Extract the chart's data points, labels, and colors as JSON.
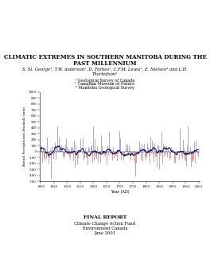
{
  "title_line1": "CLIMATIC EXTREMES IN SOUTHERN MANITOBA DURING THE",
  "title_line2": "PAST MILLENNIUM",
  "authors": "S. St. George¹, T.W. Anderson², D. Forbes¹, C.F.M. Lewis¹, E. Nielsen³ and L.H.",
  "authors2": "Thorleifson³",
  "affil1": "¹ Geological Survey of Canada",
  "affil2": "² Canadian Museum of Nature",
  "affil3": "³ Manitoba Geological Survey",
  "footer1": "FINAL REPORT",
  "footer2": "Climate Change Action Fund",
  "footer3": "Environment Canada",
  "footer4": "June 2001",
  "xlabel": "Year (AD)",
  "ylabel": "Annual Precipitation Anomaly (mm)",
  "xmin": 1400,
  "xmax": 2000,
  "ymin": -500,
  "ymax": 1000,
  "yticks": [
    -500,
    -400,
    -300,
    -200,
    -100,
    0,
    100,
    200,
    300,
    400,
    500,
    600,
    700,
    800,
    900,
    1000
  ],
  "xticks": [
    1400,
    1450,
    1500,
    1550,
    1600,
    1650,
    1700,
    1750,
    1800,
    1850,
    1900,
    1950,
    2000
  ],
  "color_positive": "#8888cc",
  "color_negative": "#cc7777",
  "color_line": "#111166",
  "background": "#ffffff"
}
